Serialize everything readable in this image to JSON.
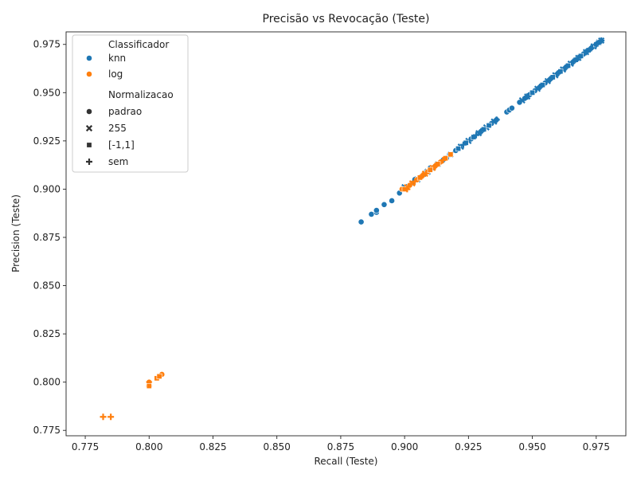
{
  "chart_data": {
    "type": "scatter",
    "title": "Precisão vs Revocação (Teste)",
    "xlabel": "Recall (Teste)",
    "ylabel": "Precision (Teste)",
    "xlim": [
      0.7675,
      0.9866
    ],
    "ylim": [
      0.7722,
      0.9815
    ],
    "xticks": [
      0.775,
      0.8,
      0.825,
      0.85,
      0.875,
      0.9,
      0.925,
      0.95,
      0.975
    ],
    "xtick_labels": [
      "0.775",
      "0.800",
      "0.825",
      "0.850",
      "0.875",
      "0.900",
      "0.925",
      "0.950",
      "0.975"
    ],
    "yticks": [
      0.775,
      0.8,
      0.825,
      0.85,
      0.875,
      0.9,
      0.925,
      0.95,
      0.975
    ],
    "ytick_labels": [
      "0.775",
      "0.800",
      "0.825",
      "0.850",
      "0.875",
      "0.900",
      "0.925",
      "0.950",
      "0.975"
    ],
    "grid": false,
    "legend_position": "top-left",
    "legend": {
      "hue_title": "Classificador",
      "hue": [
        {
          "name": "knn",
          "color": "#1f77b4"
        },
        {
          "name": "log",
          "color": "#ff7f0e"
        }
      ],
      "style_title": "Normalizacao",
      "style": [
        {
          "name": "padrao",
          "marker": "circle"
        },
        {
          "name": "255",
          "marker": "x"
        },
        {
          "name": "[-1,1]",
          "marker": "square"
        },
        {
          "name": "sem",
          "marker": "plus"
        }
      ]
    },
    "series": [
      {
        "classificador": "knn",
        "normalizacao": "padrao",
        "color": "#1f77b4",
        "marker": "circle",
        "points": [
          [
            0.883,
            0.883
          ],
          [
            0.887,
            0.887
          ],
          [
            0.889,
            0.888
          ],
          [
            0.889,
            0.889
          ],
          [
            0.892,
            0.892
          ],
          [
            0.895,
            0.894
          ],
          [
            0.898,
            0.898
          ],
          [
            0.904,
            0.905
          ],
          [
            0.907,
            0.907
          ],
          [
            0.91,
            0.911
          ],
          [
            0.915,
            0.915
          ],
          [
            0.92,
            0.92
          ],
          [
            0.926,
            0.926
          ],
          [
            0.93,
            0.93
          ],
          [
            0.934,
            0.934
          ],
          [
            0.936,
            0.936
          ],
          [
            0.94,
            0.94
          ],
          [
            0.941,
            0.941
          ],
          [
            0.942,
            0.942
          ],
          [
            0.945,
            0.945
          ],
          [
            0.947,
            0.947
          ],
          [
            0.949,
            0.949
          ],
          [
            0.951,
            0.951
          ],
          [
            0.953,
            0.953
          ],
          [
            0.955,
            0.955
          ],
          [
            0.957,
            0.957
          ],
          [
            0.96,
            0.96
          ],
          [
            0.963,
            0.963
          ],
          [
            0.966,
            0.966
          ],
          [
            0.97,
            0.97
          ],
          [
            0.973,
            0.973
          ],
          [
            0.975,
            0.975
          ]
        ]
      },
      {
        "classificador": "knn",
        "normalizacao": "255",
        "color": "#1f77b4",
        "marker": "x",
        "points": [
          [
            0.9,
            0.901
          ],
          [
            0.905,
            0.905
          ],
          [
            0.909,
            0.909
          ],
          [
            0.913,
            0.913
          ],
          [
            0.918,
            0.918
          ],
          [
            0.922,
            0.922
          ],
          [
            0.925,
            0.925
          ],
          [
            0.929,
            0.929
          ],
          [
            0.932,
            0.932
          ],
          [
            0.935,
            0.935
          ],
          [
            0.946,
            0.946
          ],
          [
            0.948,
            0.948
          ],
          [
            0.952,
            0.952
          ],
          [
            0.956,
            0.956
          ],
          [
            0.959,
            0.959
          ],
          [
            0.962,
            0.962
          ],
          [
            0.965,
            0.965
          ],
          [
            0.968,
            0.968
          ],
          [
            0.971,
            0.971
          ],
          [
            0.974,
            0.974
          ],
          [
            0.976,
            0.976
          ],
          [
            0.977,
            0.977
          ]
        ]
      },
      {
        "classificador": "knn",
        "normalizacao": "[-1,1]",
        "color": "#1f77b4",
        "marker": "square",
        "points": [
          [
            0.903,
            0.903
          ],
          [
            0.906,
            0.906
          ],
          [
            0.911,
            0.911
          ],
          [
            0.916,
            0.916
          ],
          [
            0.921,
            0.921
          ],
          [
            0.924,
            0.924
          ],
          [
            0.927,
            0.927
          ],
          [
            0.931,
            0.931
          ],
          [
            0.933,
            0.933
          ],
          [
            0.95,
            0.95
          ],
          [
            0.954,
            0.954
          ],
          [
            0.958,
            0.958
          ],
          [
            0.961,
            0.961
          ],
          [
            0.964,
            0.964
          ],
          [
            0.967,
            0.967
          ],
          [
            0.969,
            0.969
          ],
          [
            0.972,
            0.972
          ],
          [
            0.975,
            0.975
          ],
          [
            0.976,
            0.976
          ]
        ]
      },
      {
        "classificador": "knn",
        "normalizacao": "sem",
        "color": "#1f77b4",
        "marker": "plus",
        "points": [
          [
            0.901,
            0.901
          ],
          [
            0.904,
            0.904
          ],
          [
            0.908,
            0.908
          ],
          [
            0.912,
            0.912
          ],
          [
            0.917,
            0.917
          ],
          [
            0.923,
            0.923
          ],
          [
            0.928,
            0.928
          ],
          [
            0.93,
            0.93
          ],
          [
            0.936,
            0.936
          ],
          [
            0.948,
            0.948
          ],
          [
            0.953,
            0.953
          ],
          [
            0.957,
            0.957
          ],
          [
            0.96,
            0.96
          ],
          [
            0.963,
            0.963
          ],
          [
            0.966,
            0.966
          ],
          [
            0.968,
            0.968
          ],
          [
            0.971,
            0.971
          ],
          [
            0.973,
            0.973
          ],
          [
            0.975,
            0.975
          ],
          [
            0.977,
            0.977
          ]
        ]
      },
      {
        "classificador": "log",
        "normalizacao": "padrao",
        "color": "#ff7f0e",
        "marker": "circle",
        "points": [
          [
            0.8,
            0.8
          ],
          [
            0.805,
            0.804
          ],
          [
            0.899,
            0.9
          ],
          [
            0.902,
            0.902
          ],
          [
            0.905,
            0.905
          ],
          [
            0.907,
            0.907
          ],
          [
            0.909,
            0.909
          ],
          [
            0.912,
            0.912
          ],
          [
            0.914,
            0.914
          ]
        ]
      },
      {
        "classificador": "log",
        "normalizacao": "255",
        "color": "#ff7f0e",
        "marker": "x",
        "points": [
          [
            0.8,
            0.799
          ],
          [
            0.901,
            0.901
          ],
          [
            0.903,
            0.903
          ],
          [
            0.908,
            0.908
          ],
          [
            0.911,
            0.911
          ]
        ]
      },
      {
        "classificador": "log",
        "normalizacao": "[-1,1]",
        "color": "#ff7f0e",
        "marker": "square",
        "points": [
          [
            0.8,
            0.798
          ],
          [
            0.803,
            0.802
          ],
          [
            0.804,
            0.803
          ],
          [
            0.9,
            0.9
          ],
          [
            0.906,
            0.906
          ],
          [
            0.91,
            0.91
          ],
          [
            0.913,
            0.913
          ],
          [
            0.916,
            0.916
          ],
          [
            0.918,
            0.918
          ]
        ]
      },
      {
        "classificador": "log",
        "normalizacao": "sem",
        "color": "#ff7f0e",
        "marker": "plus",
        "points": [
          [
            0.782,
            0.782
          ],
          [
            0.785,
            0.782
          ],
          [
            0.901,
            0.9
          ],
          [
            0.904,
            0.904
          ],
          [
            0.907,
            0.907
          ],
          [
            0.912,
            0.912
          ],
          [
            0.915,
            0.915
          ]
        ]
      }
    ]
  }
}
